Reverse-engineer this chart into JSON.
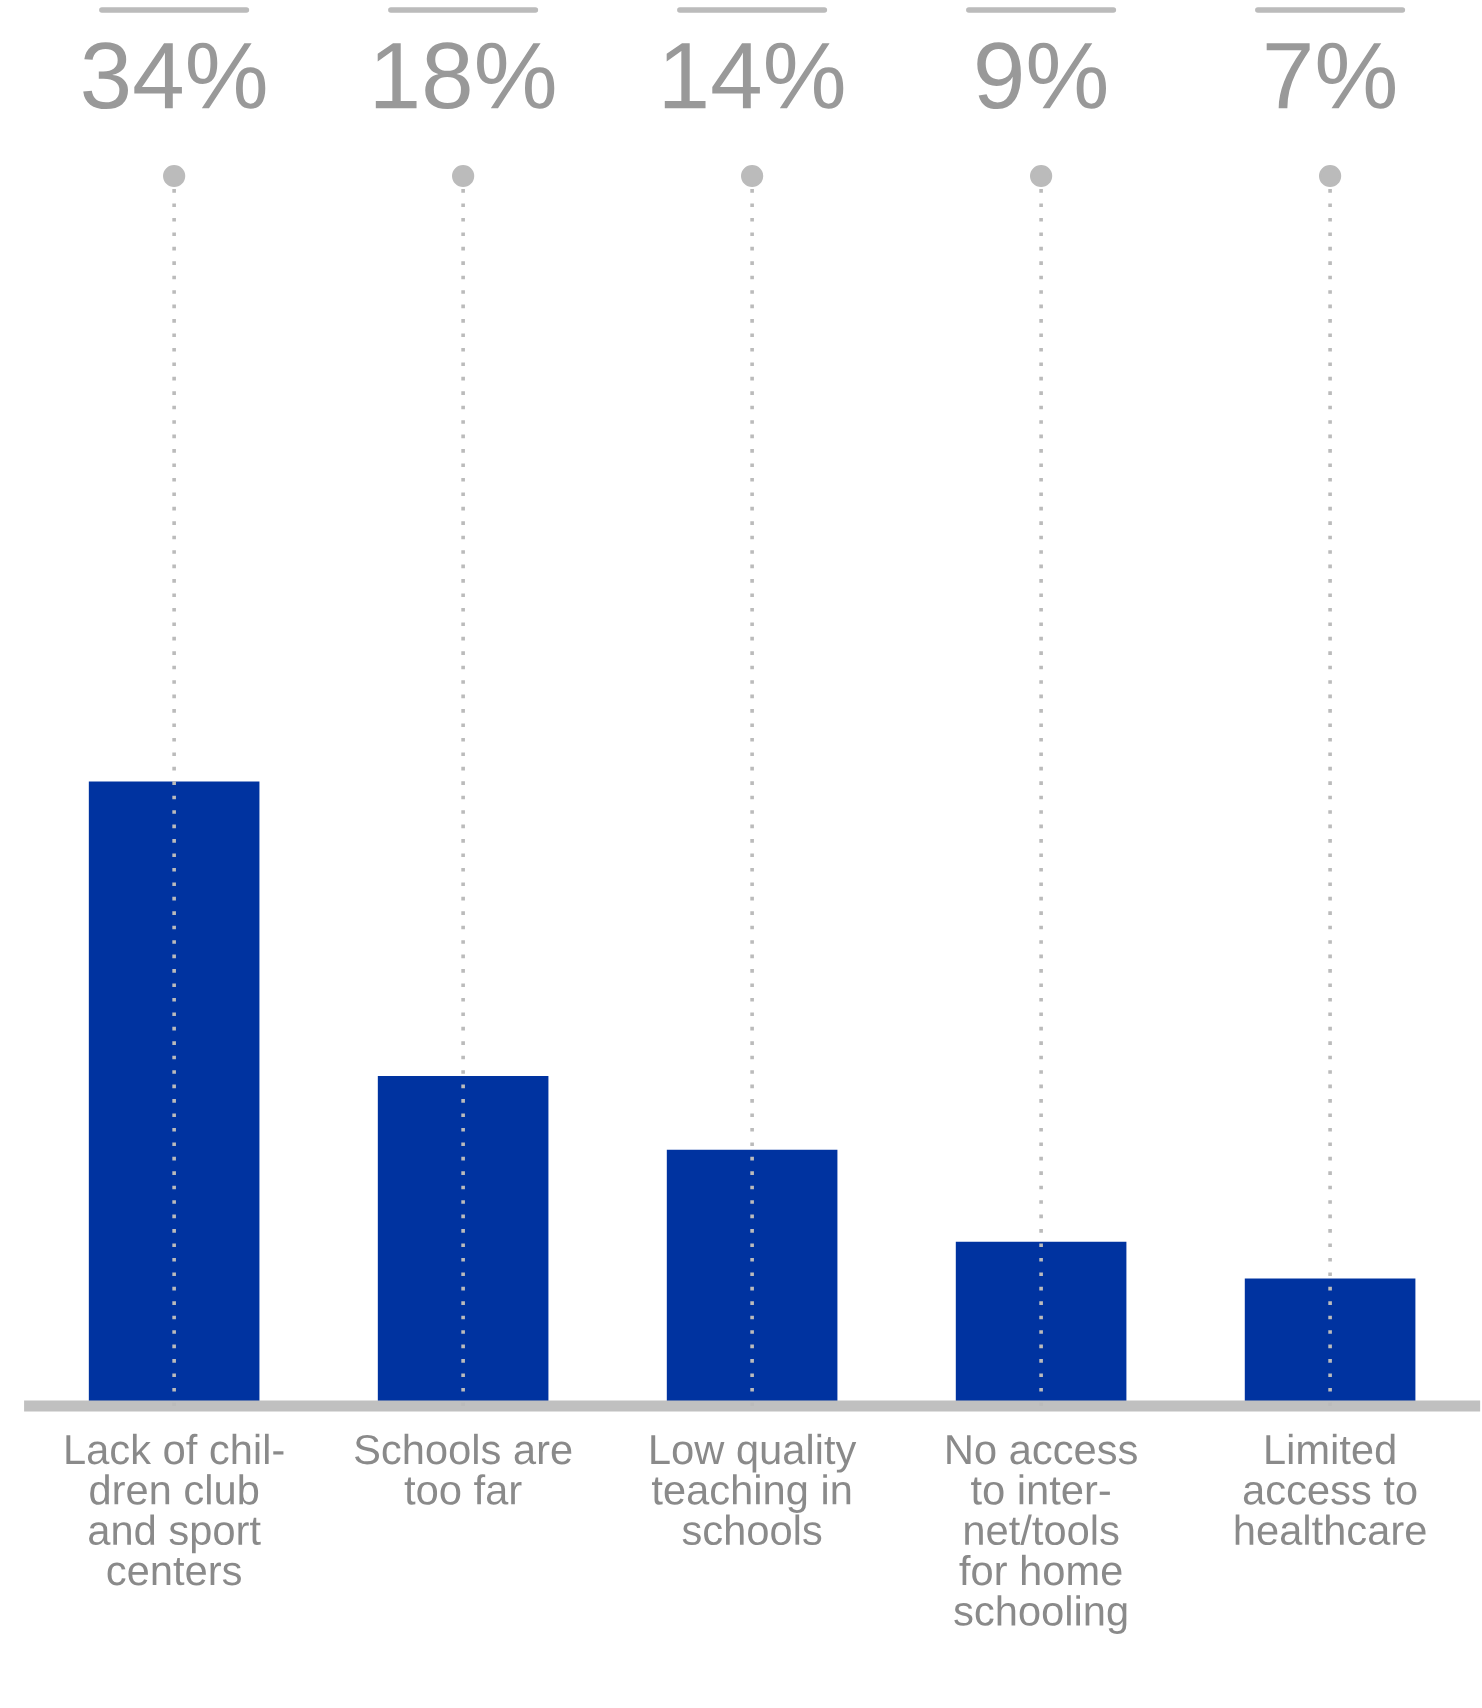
{
  "chart_data": {
    "type": "bar",
    "categories": [
      "Lack of chil-\ndren club\nand sport\ncenters",
      "Schools are\ntoo far",
      "Low quality\nteaching in\nschools",
      "No access\nto inter-\nnet/tools\nfor home\nschooling",
      "Limited\naccess to\nhealthcare"
    ],
    "values": [
      34,
      18,
      14,
      9,
      7
    ],
    "value_labels": [
      "34%",
      "18%",
      "14%",
      "9%",
      "7%"
    ],
    "color": "#0033a0",
    "grid": "x",
    "legend": false
  }
}
